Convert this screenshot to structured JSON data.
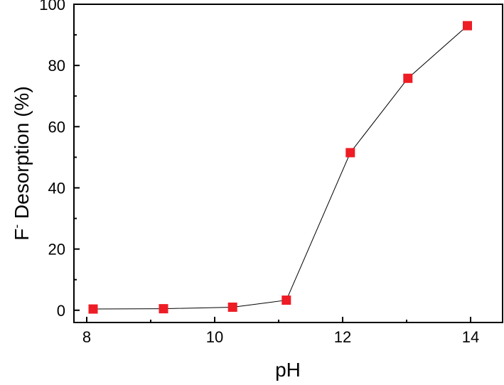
{
  "chart_data": {
    "type": "line",
    "xlabel": "pH",
    "ylabel": {
      "base": "F",
      "superscript": "-",
      "rest": " Desorption (%)"
    },
    "xlim": [
      7.8,
      14.5
    ],
    "ylim": [
      -4,
      100
    ],
    "xticks": [
      8,
      10,
      12,
      14
    ],
    "xtick_labels": [
      "8",
      "10",
      "12",
      "14"
    ],
    "yticks": [
      0,
      20,
      40,
      60,
      80,
      100
    ],
    "ytick_labels": [
      "0",
      "20",
      "40",
      "60",
      "80",
      "100"
    ],
    "grid": false,
    "legend": "none",
    "series": [
      {
        "x": [
          8.1,
          9.2,
          10.28,
          11.12,
          12.12,
          13.02,
          13.95
        ],
        "y": [
          0.4,
          0.5,
          1.0,
          3.3,
          51.5,
          75.8,
          93.0
        ],
        "marker": "square",
        "marker_color": "#ee1c24",
        "line_color": "#000000"
      }
    ]
  }
}
